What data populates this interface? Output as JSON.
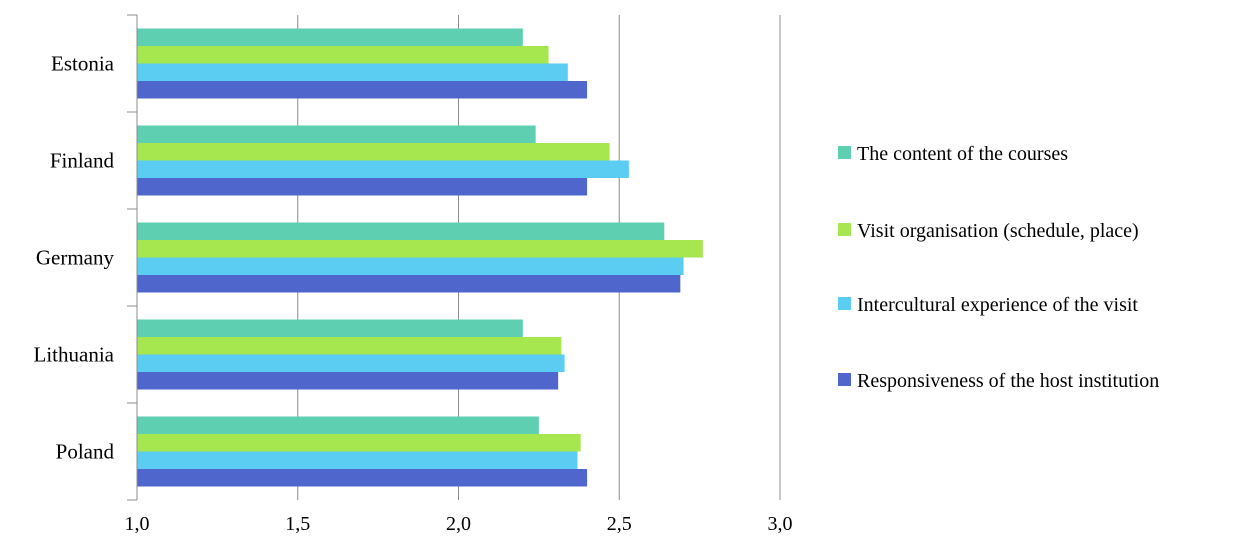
{
  "chart_data": {
    "type": "bar",
    "orientation": "horizontal",
    "categories": [
      "Estonia",
      "Finland",
      "Germany",
      "Lithuania",
      "Poland"
    ],
    "series": [
      {
        "name": "The content  of the courses",
        "color": "#5ecfb0",
        "values": [
          2.2,
          2.24,
          2.64,
          2.2,
          2.25
        ]
      },
      {
        "name": "Visit organisation (schedule, place)",
        "color": "#a6e64e",
        "values": [
          2.28,
          2.47,
          2.76,
          2.32,
          2.38
        ]
      },
      {
        "name": "Intercultural experience of the visit",
        "color": "#5bcdf2",
        "values": [
          2.34,
          2.53,
          2.7,
          2.33,
          2.37
        ]
      },
      {
        "name": "Responsiveness of the host institution",
        "color": "#4f66cc",
        "values": [
          2.4,
          2.4,
          2.69,
          2.31,
          2.4
        ]
      }
    ],
    "xlim": [
      1.0,
      3.0
    ],
    "xticks": [
      "1,0",
      "1,5",
      "2,0",
      "2,5",
      "3,0"
    ],
    "xtick_values": [
      1.0,
      1.5,
      2.0,
      2.5,
      3.0
    ],
    "grid": "vertical",
    "legend_position": "right",
    "title": "",
    "xlabel": "",
    "ylabel": ""
  }
}
